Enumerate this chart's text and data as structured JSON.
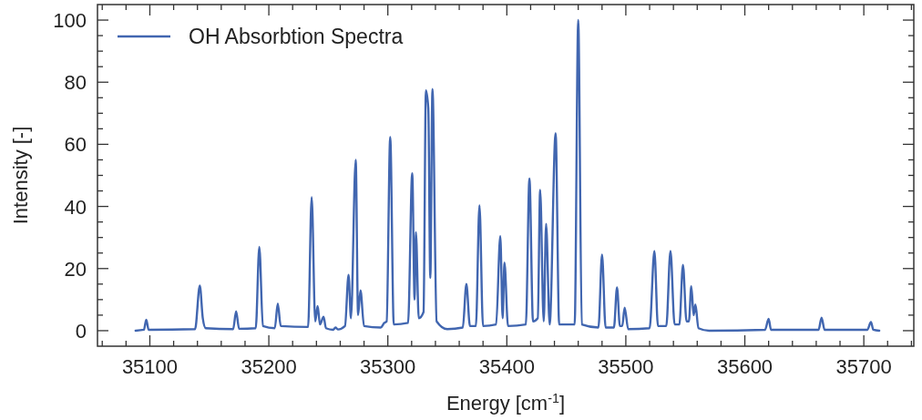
{
  "chart_data": {
    "type": "line",
    "xlabel": "Energy [cm$^{-1}$]",
    "ylabel": "Intensity [-]",
    "xlim": [
      35056,
      35742
    ],
    "ylim": [
      -5,
      105
    ],
    "xticks": [
      {
        "value": 35060,
        "label": null
      },
      {
        "value": 35080,
        "label": null
      },
      35100,
      {
        "value": 35120,
        "label": null
      },
      {
        "value": 35140,
        "label": null
      },
      {
        "value": 35160,
        "label": null
      },
      {
        "value": 35180,
        "label": null
      },
      35200,
      {
        "value": 35220,
        "label": null
      },
      {
        "value": 35240,
        "label": null
      },
      {
        "value": 35260,
        "label": null
      },
      {
        "value": 35280,
        "label": null
      },
      35300,
      {
        "value": 35320,
        "label": null
      },
      {
        "value": 35340,
        "label": null
      },
      {
        "value": 35360,
        "label": null
      },
      {
        "value": 35380,
        "label": null
      },
      35400,
      {
        "value": 35420,
        "label": null
      },
      {
        "value": 35440,
        "label": null
      },
      {
        "value": 35460,
        "label": null
      },
      {
        "value": 35480,
        "label": null
      },
      35500,
      {
        "value": 35520,
        "label": null
      },
      {
        "value": 35540,
        "label": null
      },
      {
        "value": 35560,
        "label": null
      },
      {
        "value": 35580,
        "label": null
      },
      35600,
      {
        "value": 35620,
        "label": null
      },
      {
        "value": 35640,
        "label": null
      },
      {
        "value": 35660,
        "label": null
      },
      {
        "value": 35680,
        "label": null
      },
      35700,
      {
        "value": 35720,
        "label": null
      },
      {
        "value": 35740,
        "label": null
      }
    ],
    "yticks": [
      0,
      {
        "value": 5,
        "label": null
      },
      {
        "value": 10,
        "label": null
      },
      {
        "value": 15,
        "label": null
      },
      20,
      {
        "value": 25,
        "label": null
      },
      {
        "value": 30,
        "label": null
      },
      {
        "value": 35,
        "label": null
      },
      40,
      {
        "value": 45,
        "label": null
      },
      {
        "value": 50,
        "label": null
      },
      {
        "value": 55,
        "label": null
      },
      60,
      {
        "value": 65,
        "label": null
      },
      {
        "value": 70,
        "label": null
      },
      {
        "value": 75,
        "label": null
      },
      80,
      {
        "value": 85,
        "label": null
      },
      {
        "value": 90,
        "label": null
      },
      {
        "value": 95,
        "label": null
      },
      100
    ],
    "legend": "top left",
    "grid": false,
    "marker": "none",
    "line_style": "solid",
    "x": [
      35088,
      35095,
      35097,
      35099,
      35138,
      35142,
      35144.5,
      35147,
      35170,
      35172.5,
      35175,
      35189,
      35192,
      35195,
      35205,
      35207.5,
      35210,
      35233,
      35236,
      35239,
      35241,
      35243,
      35246,
      35248,
      35254,
      35256,
      35258,
      35264,
      35267,
      35269,
      35273,
      35275,
      35277,
      35280,
      35294,
      35297,
      35299,
      35302,
      35305,
      35317,
      35320.5,
      35322.5,
      35323.6,
      35326,
      35330,
      35332,
      35334,
      35335.7,
      35337.5,
      35341,
      35350,
      35363,
      35366,
      35369,
      35374,
      35377,
      35380,
      35391,
      35394.5,
      35396.5,
      35398,
      35401,
      35416,
      35419,
      35422,
      35426,
      35428,
      35431,
      35433,
      35436,
      35441,
      35444,
      35457,
      35460,
      35463,
      35477,
      35480,
      35483,
      35490,
      35492.6,
      35495,
      35497,
      35499,
      35502,
      35520,
      35524,
      35527,
      35534,
      35537.5,
      35541,
      35545,
      35548,
      35551,
      35553,
      35555,
      35557,
      35558.5,
      35561,
      35570,
      35617,
      35620,
      35622,
      35662,
      35664.5,
      35667,
      35703,
      35706,
      35708,
      35713
    ],
    "series": [
      {
        "name": "OH Absorbtion Spectra",
        "color": "#4166b0",
        "values": [
          0,
          0.3,
          3.5,
          0.3,
          0.5,
          14.5,
          4,
          0.8,
          0.5,
          6.2,
          0.6,
          0.8,
          27,
          1.5,
          0.8,
          8.7,
          1.5,
          1.2,
          43,
          3,
          7.9,
          2,
          4.5,
          0.8,
          0.3,
          1,
          0.4,
          1.5,
          18,
          4,
          55,
          5,
          13,
          1.5,
          1,
          2.5,
          3,
          62.3,
          2,
          2.5,
          50.7,
          10,
          31.7,
          4,
          6,
          77.4,
          71.7,
          17,
          77.8,
          3,
          0.5,
          1,
          15,
          1.5,
          1.5,
          40.3,
          1.5,
          2,
          30.4,
          4,
          21.9,
          1.5,
          2,
          49,
          3,
          4,
          45.3,
          3,
          34.4,
          2,
          63.6,
          2,
          2,
          100,
          2,
          1,
          24.5,
          1,
          1,
          13.9,
          1.5,
          1.5,
          7.4,
          0.5,
          0.8,
          25.7,
          1.5,
          1.5,
          25.7,
          2,
          2,
          21.2,
          3,
          3,
          14.3,
          5,
          8.4,
          0.8,
          0,
          0.3,
          3.8,
          0.3,
          0.3,
          4.2,
          0.3,
          0.3,
          2.8,
          0.3,
          0
        ]
      }
    ]
  }
}
